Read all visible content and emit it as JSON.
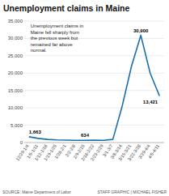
{
  "chart_data": {
    "type": "line",
    "title": "Unemployment claims in Maine",
    "annotation": "Unemployment claims in\nMaine fell sharply from\nthe previous week but\nremained far above\nnormal.",
    "source": "SOURCE: Maine Department of Labor",
    "credit": "STAFF GRAPHIC | MICHAEL FISHER",
    "categories": [
      "12/29-1/4",
      "1/5-1/11",
      "1/12-1/18",
      "1/19-1/25",
      "1/26-2/1",
      "2/2-2/8",
      "2/9-2/15",
      "2/16-2/22",
      "2/23-2/29",
      "3/1-3/7",
      "3/8-3/14",
      "3/15-3/21",
      "3/22-3/28",
      "3/29-4/4",
      "4/5-4/11"
    ],
    "values": [
      1663,
      1200,
      900,
      750,
      700,
      650,
      634,
      680,
      634,
      900,
      10500,
      22000,
      30900,
      20000,
      13421
    ],
    "value_labels": [
      "1,663",
      null,
      null,
      null,
      null,
      null,
      "634",
      null,
      null,
      null,
      null,
      null,
      "30,900",
      null,
      "13,421"
    ],
    "data_labels": true,
    "color": "#1a6faf",
    "ylim": [
      0,
      35000
    ],
    "yticks": [
      0,
      {
        "value": 5000,
        "label": "5,000"
      },
      {
        "value": 10000,
        "label": "10,000"
      },
      {
        "value": 15000,
        "label": "15,000"
      },
      {
        "value": 20000,
        "label": "20,000"
      },
      {
        "value": 25000,
        "label": "25,000"
      },
      {
        "value": 30000,
        "label": "30,000"
      },
      {
        "value": 35000,
        "label": "35,000"
      }
    ],
    "grid": true
  }
}
